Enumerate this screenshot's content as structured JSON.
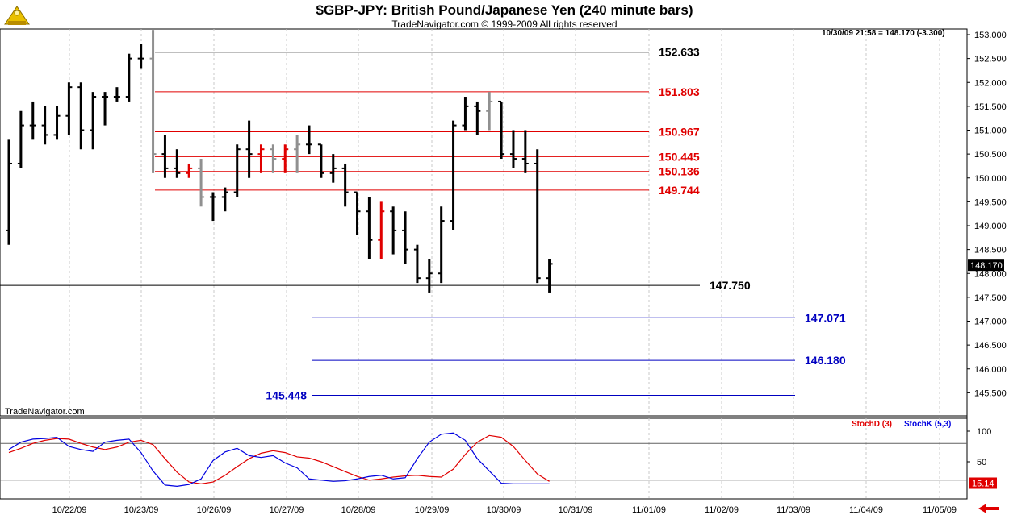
{
  "header": {
    "title": "$GBP-JPY:  British Pound/Japanese Yen  (240 minute bars)",
    "subtitle": "TradeNavigator.com © 1999-2009 All rights reserved",
    "stamp": "10/30/09 21:58 = 148.170 (-3.300)",
    "brand": "TradeNavigator.com"
  },
  "colors": {
    "up_down_bar": "#000000",
    "reversal_bar": "#e00000",
    "gray_bar": "#909090",
    "fib_black": "#000000",
    "fib_red": "#e00000",
    "fib_blue": "#0000c0",
    "stochd": "#e00000",
    "stochk": "#0000e0"
  },
  "chart_data": [
    {
      "type": "ohlc",
      "ylim": [
        145.0,
        153.0
      ],
      "y_ticks": [
        "153.000",
        "152.500",
        "152.000",
        "151.500",
        "151.000",
        "150.500",
        "150.000",
        "149.500",
        "149.000",
        "148.500",
        "148.000",
        "147.500",
        "147.000",
        "146.500",
        "146.000",
        "145.500"
      ],
      "x_ticks": [
        "10/22/09",
        "10/23/09",
        "10/26/09",
        "10/27/09",
        "10/28/09",
        "10/29/09",
        "10/30/09",
        "10/31/09",
        "11/01/09",
        "11/02/09",
        "11/03/09",
        "11/04/09",
        "11/05/09"
      ],
      "last_price_label": "148.170",
      "bars": [
        {
          "o": 148.9,
          "h": 150.8,
          "l": 148.6,
          "c": 150.3
        },
        {
          "o": 150.3,
          "h": 151.4,
          "l": 150.2,
          "c": 151.1
        },
        {
          "o": 151.1,
          "h": 151.6,
          "l": 150.8,
          "c": 151.1
        },
        {
          "o": 151.1,
          "h": 151.5,
          "l": 150.7,
          "c": 150.9
        },
        {
          "o": 150.9,
          "h": 151.5,
          "l": 150.8,
          "c": 151.3
        },
        {
          "o": 151.3,
          "h": 152.0,
          "l": 150.9,
          "c": 151.9
        },
        {
          "o": 151.9,
          "h": 152.0,
          "l": 150.6,
          "c": 151.0
        },
        {
          "o": 151.0,
          "h": 151.8,
          "l": 150.6,
          "c": 151.7
        },
        {
          "o": 151.7,
          "h": 151.8,
          "l": 151.1,
          "c": 151.7
        },
        {
          "o": 151.7,
          "h": 151.9,
          "l": 151.6,
          "c": 151.7
        },
        {
          "o": 151.7,
          "h": 152.6,
          "l": 151.6,
          "c": 152.5
        },
        {
          "o": 152.5,
          "h": 152.8,
          "l": 152.3,
          "c": 152.5
        },
        {
          "o": 152.5,
          "h": 153.1,
          "l": 150.1,
          "c": 150.5,
          "gray": true
        },
        {
          "o": 150.5,
          "h": 150.9,
          "l": 150.0,
          "c": 150.2
        },
        {
          "o": 150.2,
          "h": 150.6,
          "l": 150.0,
          "c": 150.1
        },
        {
          "o": 150.1,
          "h": 150.3,
          "l": 150.0,
          "c": 150.2,
          "red": true
        },
        {
          "o": 150.2,
          "h": 150.4,
          "l": 149.4,
          "c": 149.6,
          "gray": true
        },
        {
          "o": 149.6,
          "h": 149.7,
          "l": 149.1,
          "c": 149.6
        },
        {
          "o": 149.6,
          "h": 149.8,
          "l": 149.3,
          "c": 149.7
        },
        {
          "o": 149.7,
          "h": 150.7,
          "l": 149.6,
          "c": 150.6
        },
        {
          "o": 150.6,
          "h": 151.2,
          "l": 150.0,
          "c": 150.5
        },
        {
          "o": 150.5,
          "h": 150.7,
          "l": 150.1,
          "c": 150.6,
          "red": true
        },
        {
          "o": 150.6,
          "h": 150.7,
          "l": 150.1,
          "c": 150.4,
          "gray": true
        },
        {
          "o": 150.4,
          "h": 150.7,
          "l": 150.1,
          "c": 150.6,
          "red": true
        },
        {
          "o": 150.6,
          "h": 150.9,
          "l": 150.1,
          "c": 150.7,
          "gray": true
        },
        {
          "o": 150.7,
          "h": 151.1,
          "l": 150.5,
          "c": 150.7
        },
        {
          "o": 150.7,
          "h": 150.7,
          "l": 150.0,
          "c": 150.1
        },
        {
          "o": 150.1,
          "h": 150.5,
          "l": 149.9,
          "c": 150.2
        },
        {
          "o": 150.2,
          "h": 150.3,
          "l": 149.4,
          "c": 149.7
        },
        {
          "o": 149.7,
          "h": 149.7,
          "l": 148.8,
          "c": 149.3
        },
        {
          "o": 149.3,
          "h": 149.6,
          "l": 148.3,
          "c": 148.7
        },
        {
          "o": 148.7,
          "h": 149.5,
          "l": 148.3,
          "c": 149.3,
          "red": true
        },
        {
          "o": 149.3,
          "h": 149.4,
          "l": 148.4,
          "c": 148.9
        },
        {
          "o": 148.9,
          "h": 149.3,
          "l": 148.2,
          "c": 148.5
        },
        {
          "o": 148.5,
          "h": 148.6,
          "l": 147.8,
          "c": 147.9
        },
        {
          "o": 147.9,
          "h": 148.3,
          "l": 147.6,
          "c": 148.0
        },
        {
          "o": 148.0,
          "h": 149.4,
          "l": 147.8,
          "c": 149.1
        },
        {
          "o": 149.1,
          "h": 151.2,
          "l": 148.9,
          "c": 151.1
        },
        {
          "o": 151.1,
          "h": 151.7,
          "l": 151.0,
          "c": 151.5
        },
        {
          "o": 151.5,
          "h": 151.6,
          "l": 150.9,
          "c": 151.4
        },
        {
          "o": 151.4,
          "h": 151.8,
          "l": 151.0,
          "c": 151.6,
          "gray": true
        },
        {
          "o": 151.6,
          "h": 151.6,
          "l": 150.4,
          "c": 150.5
        },
        {
          "o": 150.5,
          "h": 151.0,
          "l": 150.2,
          "c": 150.4
        },
        {
          "o": 150.4,
          "h": 151.0,
          "l": 150.1,
          "c": 150.3
        },
        {
          "o": 150.3,
          "h": 150.6,
          "l": 147.8,
          "c": 147.9
        },
        {
          "o": 147.9,
          "h": 148.3,
          "l": 147.6,
          "c": 148.2
        }
      ],
      "levels": [
        {
          "label": "152.633",
          "value": 152.633,
          "color": "#000000",
          "label_side": "right"
        },
        {
          "label": "151.803",
          "value": 151.803,
          "color": "#e00000",
          "label_side": "right"
        },
        {
          "label": "150.967",
          "value": 150.967,
          "color": "#e00000",
          "label_side": "right"
        },
        {
          "label": "150.445",
          "value": 150.445,
          "color": "#e00000",
          "label_side": "right"
        },
        {
          "label": "150.136",
          "value": 150.136,
          "color": "#e00000",
          "label_side": "right"
        },
        {
          "label": "149.744",
          "value": 149.744,
          "color": "#e00000",
          "label_side": "right"
        },
        {
          "label": "147.750",
          "value": 147.75,
          "color": "#000000",
          "label_side": "right"
        },
        {
          "label": "147.071",
          "value": 147.071,
          "color": "#0000c0",
          "label_side": "right"
        },
        {
          "label": "146.180",
          "value": 146.18,
          "color": "#0000c0",
          "label_side": "right"
        },
        {
          "label": "145.448",
          "value": 145.448,
          "color": "#0000c0",
          "label_side": "left"
        }
      ]
    },
    {
      "type": "line",
      "ylim": [
        0,
        110
      ],
      "y_ticks": [
        "100",
        "50"
      ],
      "reference_lines": [
        80,
        20
      ],
      "last_value_label": "15.14",
      "series": [
        {
          "name": "StochD (3)",
          "values": [
            65,
            72,
            80,
            85,
            88,
            87,
            80,
            74,
            70,
            74,
            82,
            85,
            78,
            55,
            33,
            17,
            14,
            17,
            28,
            42,
            55,
            64,
            68,
            65,
            58,
            56,
            50,
            42,
            34,
            26,
            20,
            22,
            25,
            27,
            28,
            26,
            25,
            38,
            62,
            82,
            93,
            90,
            75,
            52,
            30,
            18
          ]
        },
        {
          "name": "StochK (5,3)",
          "values": [
            70,
            82,
            87,
            88,
            90,
            75,
            70,
            67,
            82,
            85,
            87,
            65,
            35,
            12,
            10,
            13,
            22,
            52,
            66,
            72,
            60,
            57,
            60,
            48,
            40,
            22,
            20,
            18,
            19,
            22,
            26,
            28,
            22,
            24,
            55,
            82,
            95,
            97,
            85,
            55,
            35,
            15,
            14,
            14,
            14,
            14
          ]
        }
      ]
    }
  ]
}
